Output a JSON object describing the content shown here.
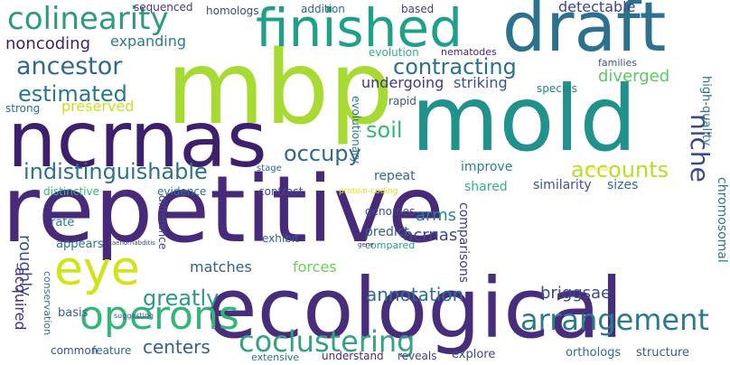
{
  "words": {
    "repetitive": "repetitive",
    "ecological": "ecological",
    "mold": "mold",
    "mbp": "mbp",
    "ncrnas": "ncrnas",
    "draft": "draft",
    "finished": "finished",
    "colinearity": "colinearity",
    "eye": "eye",
    "operons": "operons",
    "arrangement": "arrangement",
    "coclustering": "coclustering",
    "ancestor": "ancestor",
    "estimated": "estimated",
    "contracting": "contracting",
    "indistinguishable": "indistinguishable",
    "accounts": "accounts",
    "niche": "niche",
    "chromosomal": "chromosomal",
    "high_quality": "high-quality",
    "occupy": "occupy",
    "soil": "soil",
    "greatly": "greatly",
    "roughly": "roughly",
    "acquired": "acquired",
    "matches": "matches",
    "forces": "forces",
    "annotation": "annotation",
    "comparisons": "comparisons",
    "briggsae": "briggsae",
    "centers": "centers",
    "noncoding": "noncoding",
    "expanding": "expanding",
    "detectable": "detectable",
    "diverged": "diverged",
    "undergoing": "undergoing",
    "striking": "striking",
    "preserved": "preserved",
    "strong": "strong",
    "rapid": "rapid",
    "evolutionary": "evolutionary",
    "evolution": "evolution",
    "nematodes": "nematodes",
    "families": "families",
    "species": "species",
    "sequenced": "sequenced",
    "homologs": "homologs",
    "addition": "addition",
    "based": "based",
    "repeat": "repeat",
    "improve": "improve",
    "shared": "shared",
    "similarity": "similarity",
    "sizes": "sizes",
    "arms": "arms",
    "ncrnas_small": "ncrnas",
    "predict": "predict",
    "compared": "compared",
    "genomes": "genomes",
    "exhibit": "exhibit",
    "distinctive": "distinctive",
    "evidence": "evidence",
    "contrast": "contrast",
    "protein_coding": "protein-coding",
    "function": "function",
    "rate": "rate",
    "appears": "appears",
    "caenorhabditis": "caenorhabditis",
    "gene": "gene",
    "difference": "difference",
    "conservation": "conservation",
    "basis": "basis",
    "suggesting": "suggesting",
    "common": "common",
    "feature": "feature",
    "extensive": "extensive",
    "understand": "understand",
    "reveals": "reveals",
    "explore": "explore",
    "orthologs": "orthologs",
    "structure": "structure",
    "stage": "stage"
  },
  "palette": {
    "purple": "#440154",
    "indigo": "#472d7b",
    "blue": "#3b528b",
    "steel": "#2c728e",
    "teal": "#21918c",
    "green": "#28ae80",
    "lime": "#5ec962",
    "yellowgreen": "#addc30",
    "yellow": "#fde725"
  }
}
